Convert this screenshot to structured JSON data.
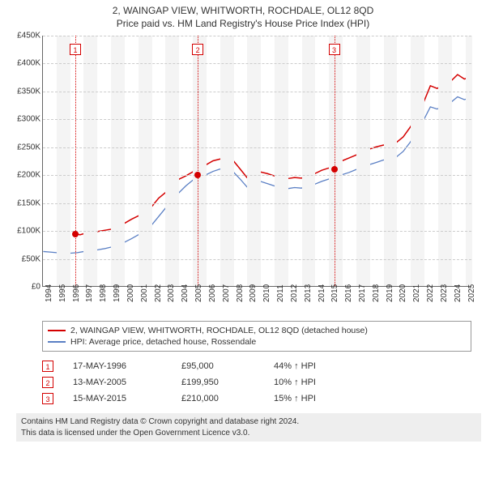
{
  "title": {
    "line1": "2, WAINGAP VIEW, WHITWORTH, ROCHDALE, OL12 8QD",
    "line2": "Price paid vs. HM Land Registry's House Price Index (HPI)"
  },
  "chart": {
    "type": "line",
    "x_domain": [
      1994,
      2025.5
    ],
    "y_domain": [
      0,
      450000
    ],
    "y_ticks": [
      0,
      50000,
      100000,
      150000,
      200000,
      250000,
      300000,
      350000,
      400000,
      450000
    ],
    "y_tick_labels": [
      "£0",
      "£50K",
      "£100K",
      "£150K",
      "£200K",
      "£250K",
      "£300K",
      "£350K",
      "£400K",
      "£450K"
    ],
    "x_ticks": [
      1994,
      1995,
      1996,
      1997,
      1998,
      1999,
      2000,
      2001,
      2002,
      2003,
      2004,
      2005,
      2006,
      2007,
      2008,
      2009,
      2010,
      2011,
      2012,
      2013,
      2014,
      2015,
      2016,
      2017,
      2018,
      2019,
      2020,
      2021,
      2022,
      2023,
      2024,
      2025
    ],
    "bg_band_color": "#f4f4f4",
    "grid_color": "#cccccc",
    "series": [
      {
        "name": "property",
        "label": "2, WAINGAP VIEW, WHITWORTH, ROCHDALE, OL12 8QD (detached house)",
        "color": "#d40000",
        "width": 1.5,
        "data": [
          [
            1996.38,
            95000
          ],
          [
            1996.7,
            92000
          ],
          [
            1997.0,
            94000
          ],
          [
            1997.5,
            96000
          ],
          [
            1998.0,
            98000
          ],
          [
            1998.5,
            100000
          ],
          [
            1999.0,
            102000
          ],
          [
            1999.5,
            107000
          ],
          [
            2000.0,
            113000
          ],
          [
            2000.5,
            120000
          ],
          [
            2001.0,
            126000
          ],
          [
            2001.5,
            130000
          ],
          [
            2002.0,
            143000
          ],
          [
            2002.5,
            158000
          ],
          [
            2003.0,
            168000
          ],
          [
            2003.5,
            180000
          ],
          [
            2004.0,
            192000
          ],
          [
            2004.5,
            198000
          ],
          [
            2005.0,
            205000
          ],
          [
            2005.36,
            199950
          ],
          [
            2005.5,
            255000
          ],
          [
            2005.7,
            220000
          ],
          [
            2006.0,
            218000
          ],
          [
            2006.5,
            225000
          ],
          [
            2007.0,
            228000
          ],
          [
            2007.5,
            232000
          ],
          [
            2008.0,
            225000
          ],
          [
            2008.5,
            210000
          ],
          [
            2009.0,
            195000
          ],
          [
            2009.5,
            198000
          ],
          [
            2010.0,
            205000
          ],
          [
            2010.5,
            202000
          ],
          [
            2011.0,
            198000
          ],
          [
            2011.5,
            195000
          ],
          [
            2012.0,
            193000
          ],
          [
            2012.5,
            195000
          ],
          [
            2013.0,
            194000
          ],
          [
            2013.5,
            197000
          ],
          [
            2014.0,
            202000
          ],
          [
            2014.5,
            208000
          ],
          [
            2015.0,
            212000
          ],
          [
            2015.37,
            210000
          ],
          [
            2015.6,
            222000
          ],
          [
            2016.0,
            225000
          ],
          [
            2016.5,
            230000
          ],
          [
            2017.0,
            235000
          ],
          [
            2017.5,
            240000
          ],
          [
            2018.0,
            246000
          ],
          [
            2018.5,
            250000
          ],
          [
            2019.0,
            253000
          ],
          [
            2019.5,
            255000
          ],
          [
            2020.0,
            258000
          ],
          [
            2020.5,
            268000
          ],
          [
            2021.0,
            285000
          ],
          [
            2021.5,
            305000
          ],
          [
            2022.0,
            330000
          ],
          [
            2022.5,
            360000
          ],
          [
            2023.0,
            355000
          ],
          [
            2023.5,
            362000
          ],
          [
            2024.0,
            368000
          ],
          [
            2024.5,
            380000
          ],
          [
            2025.0,
            372000
          ],
          [
            2025.4,
            375000
          ]
        ]
      },
      {
        "name": "hpi",
        "label": "HPI: Average price, detached house, Rossendale",
        "color": "#5a7fc4",
        "width": 1.3,
        "data": [
          [
            1994.0,
            62000
          ],
          [
            1994.5,
            61000
          ],
          [
            1995.0,
            60000
          ],
          [
            1995.5,
            58000
          ],
          [
            1996.0,
            59000
          ],
          [
            1996.5,
            60000
          ],
          [
            1997.0,
            62000
          ],
          [
            1997.5,
            63500
          ],
          [
            1998.0,
            65000
          ],
          [
            1998.5,
            67000
          ],
          [
            1999.0,
            70000
          ],
          [
            1999.5,
            74000
          ],
          [
            2000.0,
            79000
          ],
          [
            2000.5,
            85000
          ],
          [
            2001.0,
            92000
          ],
          [
            2001.5,
            98000
          ],
          [
            2002.0,
            110000
          ],
          [
            2002.5,
            125000
          ],
          [
            2003.0,
            140000
          ],
          [
            2003.5,
            155000
          ],
          [
            2004.0,
            168000
          ],
          [
            2004.5,
            180000
          ],
          [
            2005.0,
            190000
          ],
          [
            2005.5,
            198000
          ],
          [
            2006.0,
            200000
          ],
          [
            2006.5,
            206000
          ],
          [
            2007.0,
            210000
          ],
          [
            2007.5,
            213000
          ],
          [
            2008.0,
            205000
          ],
          [
            2008.5,
            192000
          ],
          [
            2009.0,
            178000
          ],
          [
            2009.5,
            182000
          ],
          [
            2010.0,
            188000
          ],
          [
            2010.5,
            184000
          ],
          [
            2011.0,
            180000
          ],
          [
            2011.5,
            177000
          ],
          [
            2012.0,
            175000
          ],
          [
            2012.5,
            177000
          ],
          [
            2013.0,
            176000
          ],
          [
            2013.5,
            179000
          ],
          [
            2014.0,
            183000
          ],
          [
            2014.5,
            188000
          ],
          [
            2015.0,
            192000
          ],
          [
            2015.5,
            196000
          ],
          [
            2016.0,
            200000
          ],
          [
            2016.5,
            204000
          ],
          [
            2017.0,
            209000
          ],
          [
            2017.5,
            213000
          ],
          [
            2018.0,
            218000
          ],
          [
            2018.5,
            222000
          ],
          [
            2019.0,
            226000
          ],
          [
            2019.5,
            229000
          ],
          [
            2020.0,
            232000
          ],
          [
            2020.5,
            242000
          ],
          [
            2021.0,
            258000
          ],
          [
            2021.5,
            276000
          ],
          [
            2022.0,
            298000
          ],
          [
            2022.5,
            322000
          ],
          [
            2023.0,
            318000
          ],
          [
            2023.5,
            324000
          ],
          [
            2024.0,
            330000
          ],
          [
            2024.5,
            340000
          ],
          [
            2025.0,
            335000
          ],
          [
            2025.4,
            338000
          ]
        ]
      }
    ],
    "markers": [
      {
        "n": "1",
        "year": 1996.38,
        "price": 95000,
        "color": "#d40000"
      },
      {
        "n": "2",
        "year": 2005.36,
        "price": 199950,
        "color": "#d40000"
      },
      {
        "n": "3",
        "year": 2015.37,
        "price": 210000,
        "color": "#d40000"
      }
    ]
  },
  "legend": {
    "items": [
      {
        "color": "#d40000",
        "label": "2, WAINGAP VIEW, WHITWORTH, ROCHDALE, OL12 8QD (detached house)"
      },
      {
        "color": "#5a7fc4",
        "label": "HPI: Average price, detached house, Rossendale"
      }
    ]
  },
  "events": [
    {
      "n": "1",
      "color": "#d40000",
      "date": "17-MAY-1996",
      "price": "£95,000",
      "pct": "44% ↑ HPI"
    },
    {
      "n": "2",
      "color": "#d40000",
      "date": "13-MAY-2005",
      "price": "£199,950",
      "pct": "10% ↑ HPI"
    },
    {
      "n": "3",
      "color": "#d40000",
      "date": "15-MAY-2015",
      "price": "£210,000",
      "pct": "15% ↑ HPI"
    }
  ],
  "footer": {
    "line1": "Contains HM Land Registry data © Crown copyright and database right 2024.",
    "line2": "This data is licensed under the Open Government Licence v3.0."
  }
}
